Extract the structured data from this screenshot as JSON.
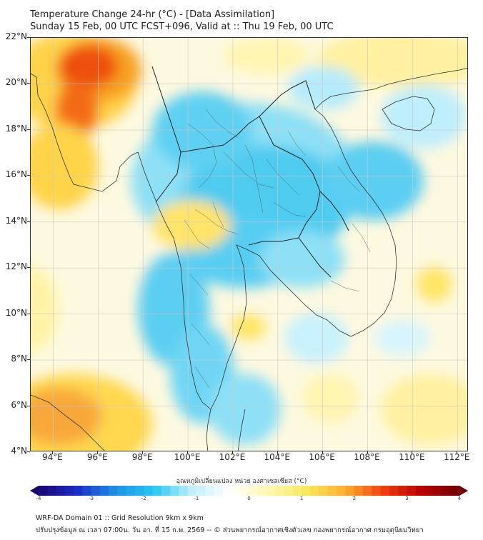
{
  "title": {
    "line1": "Temperature Change 24-hr (°C) - [Data Assimilation]",
    "line2": "Sunday 15 Feb, 00 UTC FCST+096, Valid at :: Thu 19 Feb, 00 UTC"
  },
  "map": {
    "lat_range": [
      4,
      22
    ],
    "lon_range": [
      93,
      112.5
    ],
    "lat_labels": [
      "22°N",
      "20°N",
      "18°N",
      "16°N",
      "14°N",
      "12°N",
      "10°N",
      "8°N",
      "6°N",
      "4°N"
    ],
    "lon_labels": [
      "94°E",
      "96°E",
      "98°E",
      "100°E",
      "102°E",
      "104°E",
      "106°E",
      "108°E",
      "110°E",
      "112°E"
    ]
  },
  "colorbar": {
    "title": "อุณหภูมิเปลี่ยนแปลง หน่วย องศาเซลเซียส (°C)",
    "range": [
      -4,
      4
    ],
    "tick_labels": [
      "-4",
      "-3",
      "-2",
      "-1",
      "0",
      "1",
      "2",
      "3",
      "4"
    ],
    "colors": [
      "#1a0570",
      "#1a2cc8",
      "#1e8fe6",
      "#27c6f0",
      "#bfefff",
      "#ffffff",
      "#fff8b0",
      "#f8e860",
      "#ffb030",
      "#f04010",
      "#b80000",
      "#700000"
    ]
  },
  "footer": {
    "line1": "WRF-DA Domain 01 :: Grid Resolution 9km x 9km",
    "line2": "ปรับปรุงข้อมูล ณ เวลา 07:00น. วัน อา. ที่ 15 ก.พ. 2569 -- © ส่วนพยากรณ์อากาศเชิงตัวเลข กองพยากรณ์อากาศ กรมอุตุนิยมวิทยา"
  }
}
